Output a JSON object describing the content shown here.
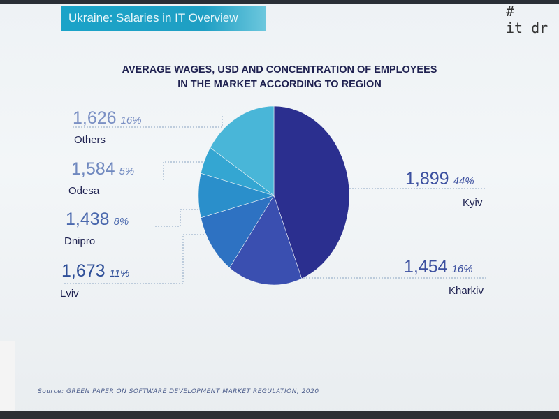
{
  "banner": {
    "title": "Ukraine: Salaries in IT Overview"
  },
  "handle": "# it_dr",
  "chart_data": {
    "type": "pie",
    "title": "AVERAGE WAGES, USD AND CONCENTRATION OF EMPLOYEES IN THE MARKET ACCORDING TO REGION",
    "title_line1": "AVERAGE WAGES, USD AND CONCENTRATION OF EMPLOYEES",
    "title_line2": "IN THE MARKET ACCORDING TO REGION",
    "slices": [
      {
        "region": "Kyiv",
        "wage": "1,899",
        "share_label": "44%",
        "share": 44,
        "color": "#2b2f8f"
      },
      {
        "region": "Kharkiv",
        "wage": "1,454",
        "share_label": "16%",
        "share": 16,
        "color": "#3a4fb0"
      },
      {
        "region": "Lviv",
        "wage": "1,673",
        "share_label": "11%",
        "share": 11,
        "color": "#2e72c2"
      },
      {
        "region": "Dnipro",
        "wage": "1,438",
        "share_label": "8%",
        "share": 8,
        "color": "#2a8fcb"
      },
      {
        "region": "Odesa",
        "wage": "1,584",
        "share_label": "5%",
        "share": 5,
        "color": "#34a6d2"
      },
      {
        "region": "Others",
        "wage": "1,626",
        "share_label": "16%",
        "share": 16,
        "color": "#49b6d8"
      }
    ]
  },
  "source": "Source: GREEN PAPER ON SOFTWARE DEVELOPMENT MARKET REGULATION, 2020",
  "colors": {
    "banner": "#1aa3c8",
    "title": "#1f2150",
    "value": "#3b4f9f"
  }
}
